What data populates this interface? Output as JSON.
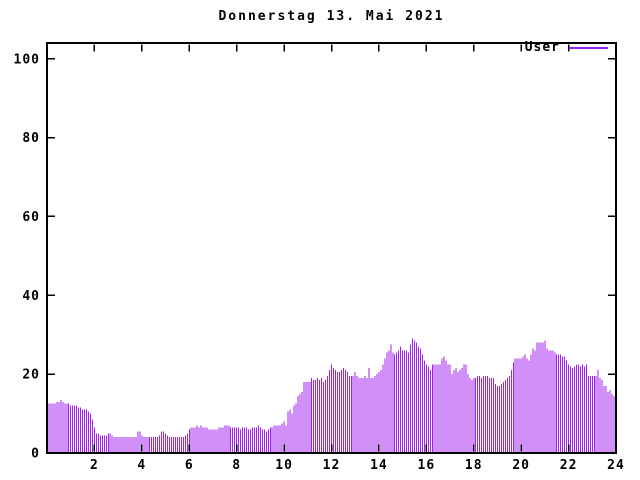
{
  "window": {
    "background": "#ffffff"
  },
  "chart_data": {
    "type": "bar",
    "style": "impulses",
    "title": "Donnerstag 13. Mai 2021",
    "xlabel": "",
    "ylabel": "",
    "xlim": [
      0,
      24
    ],
    "ylim": [
      0,
      104
    ],
    "xticks": [
      2,
      4,
      6,
      8,
      10,
      12,
      14,
      16,
      18,
      20,
      22,
      24
    ],
    "yticks": [
      0,
      20,
      40,
      60,
      80,
      100
    ],
    "grid": false,
    "legend_position": "top-right-inside",
    "border_color": "#000000",
    "text_color": "#000000",
    "sample_interval_minutes": 5,
    "x_unit": "hour-of-day",
    "series": [
      {
        "name": "User",
        "color": "#A020F0",
        "values": [
          12.5,
          12.5,
          12.5,
          12.5,
          13,
          13,
          13.5,
          13,
          12.5,
          12.5,
          12.5,
          12,
          12,
          12,
          12,
          11.5,
          11.5,
          11,
          11,
          11,
          10.5,
          10,
          8.5,
          6.5,
          5,
          5,
          4.5,
          4.5,
          4.5,
          4.5,
          5,
          5,
          4.5,
          4,
          4,
          4,
          4,
          4,
          4,
          4,
          4,
          4,
          4,
          4,
          4,
          5.5,
          5.5,
          4.5,
          4,
          4,
          4,
          4,
          4,
          4,
          4,
          4,
          4.5,
          5.5,
          5.5,
          5,
          4.5,
          4,
          4,
          4,
          4,
          4,
          4,
          4,
          4,
          4.5,
          5,
          6,
          6.5,
          6.5,
          6.5,
          7,
          6.5,
          7,
          6.5,
          6.5,
          6.5,
          6,
          6,
          6,
          6,
          6,
          6.5,
          6.5,
          6.5,
          7,
          7,
          7,
          6.5,
          6.5,
          6.5,
          6.5,
          6.5,
          6,
          6.5,
          6.5,
          6.5,
          6,
          6,
          6.5,
          6.5,
          6.5,
          7,
          6.5,
          6,
          6,
          5.5,
          6,
          6.5,
          6.5,
          7,
          7,
          7,
          7,
          7.5,
          8,
          7,
          10.5,
          11,
          10,
          12,
          12.5,
          14.5,
          15,
          15.5,
          18,
          18,
          18,
          18,
          19,
          18.5,
          18.5,
          19,
          18.5,
          19,
          18,
          18.5,
          19.5,
          21,
          22.5,
          21.5,
          21,
          20.5,
          20.5,
          21,
          21.5,
          21,
          20.5,
          19.5,
          19.5,
          19.5,
          20.5,
          19.5,
          19,
          19,
          19,
          19.5,
          19,
          21.5,
          19,
          19,
          19.5,
          20,
          20.5,
          21,
          22.5,
          24,
          25.5,
          26,
          27.5,
          25.5,
          25,
          25.5,
          26,
          27,
          26,
          26,
          26,
          25.5,
          27.5,
          29,
          28.5,
          28,
          27,
          26.5,
          25,
          23.5,
          22.5,
          22,
          21,
          22.5,
          22.5,
          22.5,
          22.5,
          22.5,
          24,
          24.5,
          23.5,
          22.5,
          22.5,
          20,
          21,
          21.5,
          20.5,
          21,
          21.5,
          22.5,
          22.5,
          20,
          19,
          18.5,
          19,
          19,
          19.5,
          19.5,
          19,
          19.5,
          19.5,
          19.5,
          19,
          19,
          19,
          17.5,
          17,
          17,
          17.5,
          18,
          18.5,
          19,
          19.5,
          21,
          23,
          24,
          24,
          24,
          24,
          24.5,
          25,
          24,
          23.5,
          25,
          26.5,
          26,
          28,
          28,
          28,
          28,
          28.5,
          26.5,
          26,
          26,
          26,
          25.5,
          25,
          25,
          25,
          24.5,
          24.5,
          23.5,
          22.5,
          22,
          21.5,
          22,
          22.5,
          22.5,
          22,
          22.5,
          22,
          22.5,
          19.5,
          19.5,
          19.5,
          19.5,
          19.5,
          21,
          19,
          18.5,
          17,
          17,
          15.5,
          16,
          15,
          14.5,
          14.5
        ]
      }
    ]
  }
}
